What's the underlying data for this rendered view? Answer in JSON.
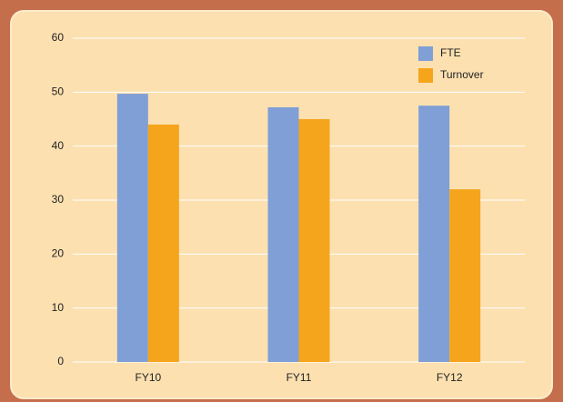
{
  "chart_data": {
    "type": "bar",
    "categories": [
      "FY10",
      "FY11",
      "FY12"
    ],
    "series": [
      {
        "name": "FTE",
        "color": "#7f9fd6",
        "values": [
          49.7,
          47.2,
          47.5
        ]
      },
      {
        "name": "Turnover",
        "color": "#f5a51c",
        "values": [
          44.0,
          45.0,
          32.0
        ]
      }
    ],
    "ylim": [
      0,
      60
    ],
    "yticks": [
      0,
      10,
      20,
      30,
      40,
      50,
      60
    ],
    "grid": true,
    "legend": "upper right"
  }
}
